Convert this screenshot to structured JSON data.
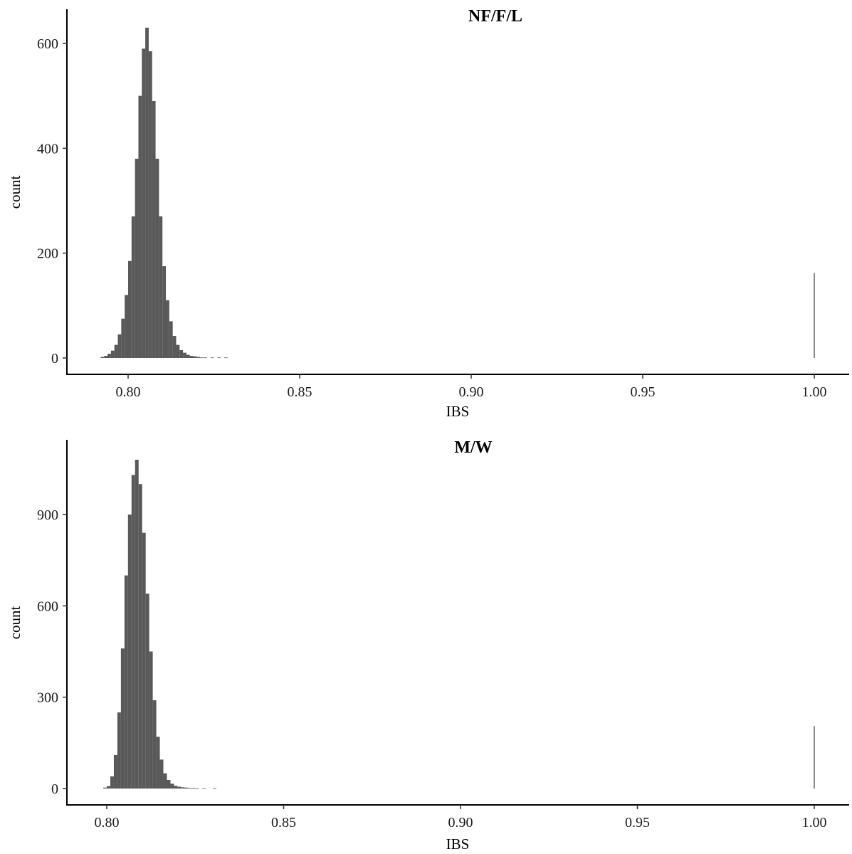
{
  "chart_data": [
    {
      "type": "bar",
      "title": "NF/F/L",
      "xlabel": "IBS",
      "ylabel": "count",
      "xlim": [
        0.79,
        1.01
      ],
      "ylim": [
        0,
        640
      ],
      "x_ticks": [
        0.8,
        0.85,
        0.9,
        0.95,
        1.0
      ],
      "x_tick_labels": [
        "0.80",
        "0.85",
        "0.90",
        "0.95",
        "1.00"
      ],
      "y_ticks": [
        0,
        200,
        400,
        600
      ],
      "y_tick_labels": [
        "0",
        "200",
        "400",
        "600"
      ],
      "bar_color": "#595959",
      "bin_width": 0.00025,
      "bins": [
        [
          0.7925,
          2
        ],
        [
          0.7935,
          4
        ],
        [
          0.7945,
          8
        ],
        [
          0.7955,
          14
        ],
        [
          0.7965,
          25
        ],
        [
          0.7975,
          45
        ],
        [
          0.7985,
          75
        ],
        [
          0.7995,
          120
        ],
        [
          0.8005,
          185
        ],
        [
          0.8015,
          270
        ],
        [
          0.8025,
          380
        ],
        [
          0.8035,
          500
        ],
        [
          0.8045,
          590
        ],
        [
          0.8055,
          630
        ],
        [
          0.8065,
          585
        ],
        [
          0.8075,
          490
        ],
        [
          0.8085,
          380
        ],
        [
          0.8095,
          270
        ],
        [
          0.8105,
          175
        ],
        [
          0.8115,
          110
        ],
        [
          0.8125,
          70
        ],
        [
          0.8135,
          42
        ],
        [
          0.8145,
          25
        ],
        [
          0.8155,
          15
        ],
        [
          0.8165,
          10
        ],
        [
          0.8175,
          6
        ],
        [
          0.8185,
          4
        ],
        [
          0.8195,
          3
        ],
        [
          0.8205,
          2
        ],
        [
          0.8215,
          1
        ],
        [
          0.8225,
          1
        ],
        [
          0.8245,
          1
        ],
        [
          0.8265,
          1
        ],
        [
          0.8285,
          1
        ],
        [
          1.0,
          162
        ]
      ]
    },
    {
      "type": "bar",
      "title": "M/W",
      "xlabel": "IBS",
      "ylabel": "count",
      "xlim": [
        0.79,
        1.01
      ],
      "ylim": [
        0,
        1100
      ],
      "x_ticks": [
        0.8,
        0.85,
        0.9,
        0.95,
        1.0
      ],
      "x_tick_labels": [
        "0.80",
        "0.85",
        "0.90",
        "0.95",
        "1.00"
      ],
      "y_ticks": [
        0,
        300,
        600,
        900
      ],
      "y_tick_labels": [
        "0",
        "300",
        "600",
        "900"
      ],
      "bar_color": "#595959",
      "bin_width": 0.00025,
      "bins": [
        [
          0.7995,
          3
        ],
        [
          0.8005,
          8
        ],
        [
          0.8015,
          40
        ],
        [
          0.8025,
          110
        ],
        [
          0.8035,
          250
        ],
        [
          0.8045,
          460
        ],
        [
          0.8055,
          700
        ],
        [
          0.8065,
          900
        ],
        [
          0.8075,
          1030
        ],
        [
          0.8085,
          1080
        ],
        [
          0.8095,
          1000
        ],
        [
          0.8105,
          840
        ],
        [
          0.8115,
          640
        ],
        [
          0.8125,
          450
        ],
        [
          0.8135,
          290
        ],
        [
          0.8145,
          170
        ],
        [
          0.8155,
          95
        ],
        [
          0.8165,
          50
        ],
        [
          0.8175,
          28
        ],
        [
          0.8185,
          16
        ],
        [
          0.8195,
          9
        ],
        [
          0.8205,
          6
        ],
        [
          0.8215,
          4
        ],
        [
          0.8225,
          3
        ],
        [
          0.8235,
          2
        ],
        [
          0.8245,
          2
        ],
        [
          0.8255,
          1
        ],
        [
          0.8275,
          1
        ],
        [
          0.8305,
          1
        ],
        [
          1.0,
          205
        ]
      ]
    }
  ]
}
